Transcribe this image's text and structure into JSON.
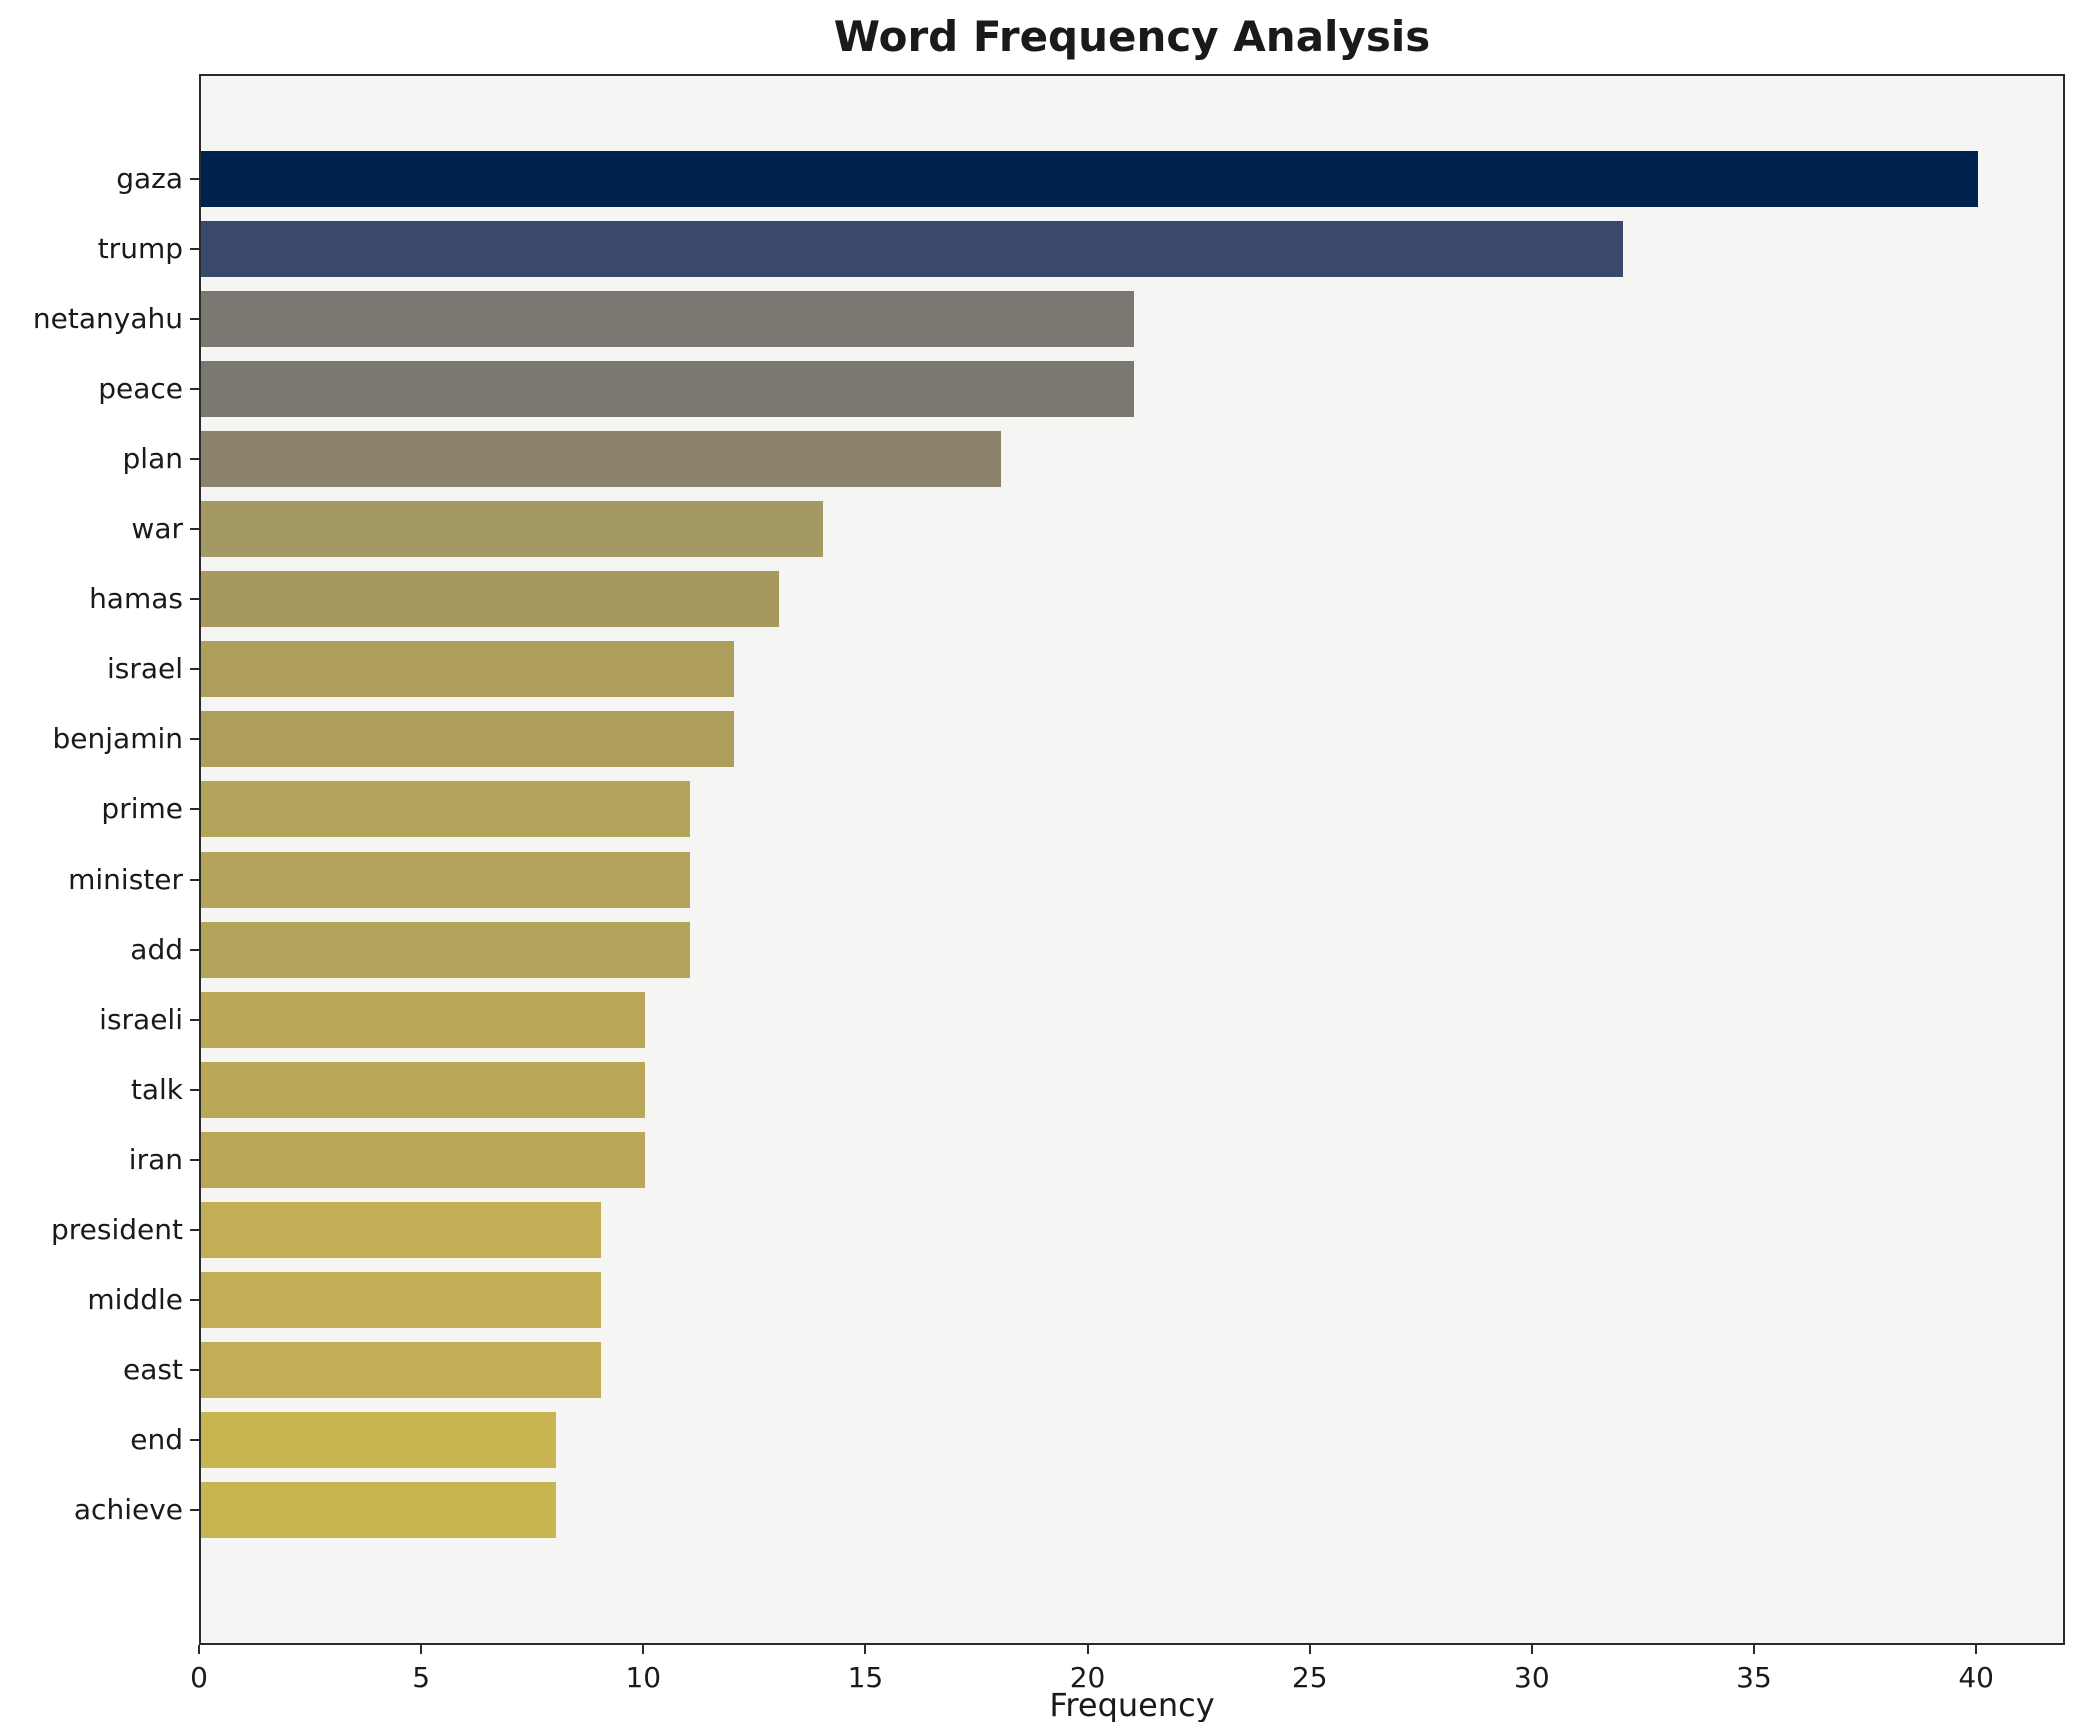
{
  "chart_data": {
    "type": "bar",
    "orientation": "horizontal",
    "title": "Word Frequency Analysis",
    "xlabel": "Frequency",
    "ylabel": "",
    "categories": [
      "gaza",
      "trump",
      "netanyahu",
      "peace",
      "plan",
      "war",
      "hamas",
      "israel",
      "benjamin",
      "prime",
      "minister",
      "add",
      "israeli",
      "talk",
      "iran",
      "president",
      "middle",
      "east",
      "end",
      "achieve"
    ],
    "values": [
      40,
      32,
      21,
      21,
      18,
      14,
      13,
      12,
      12,
      11,
      11,
      11,
      10,
      10,
      10,
      9,
      9,
      9,
      8,
      8
    ],
    "colors": [
      "#00224e",
      "#39486b",
      "#7a7870",
      "#7a7870",
      "#8a8369",
      "#a39a63",
      "#a7995e",
      "#ad9e5c",
      "#ad9e5c",
      "#b4a35a",
      "#b4a35a",
      "#b4a35a",
      "#baa858",
      "#baa858",
      "#baa858",
      "#c1ae55",
      "#c1ae55",
      "#c1ae55",
      "#c8b552",
      "#c8b552"
    ],
    "xlim": [
      0,
      42
    ],
    "x_ticks": [
      0,
      5,
      10,
      15,
      20,
      25,
      30,
      35,
      40
    ],
    "grid": false,
    "legend_position": "none",
    "plot_background": "#f5f5f3",
    "figure_background": "#ffffff"
  }
}
